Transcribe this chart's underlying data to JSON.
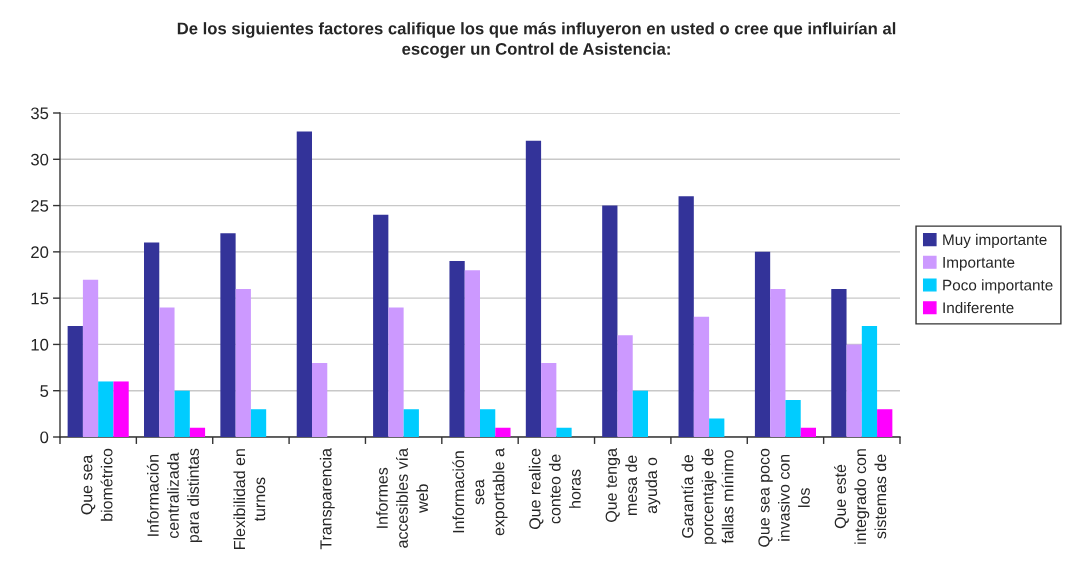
{
  "chart_data": {
    "type": "bar",
    "title": "De los siguientes factores califique los que más influyeron en usted o cree que influirían al\nescoger un Control de Asistencia:",
    "categories": [
      "Que sea\nbiométrico",
      "Información\ncentralizada\npara distintas",
      "Flexibilidad en\nturnos",
      "Transparencia",
      "Informes\naccesibles vía\nweb",
      "Información\nsea\nexportable a",
      "Que realice\nconteo de\nhoras",
      "Que tenga\nmesa de\nayuda o",
      "Garantía de\nporcentaje de\nfallas mínimo",
      "Que sea poco\ninvasivo con\nlos",
      "Que esté\nintegrado con\nsistemas de"
    ],
    "series": [
      {
        "name": "Muy importante",
        "color": "#333399",
        "values": [
          12,
          21,
          22,
          33,
          24,
          19,
          32,
          25,
          26,
          20,
          16
        ]
      },
      {
        "name": "Importante",
        "color": "#cc99ff",
        "values": [
          17,
          14,
          16,
          8,
          14,
          18,
          8,
          11,
          13,
          16,
          10
        ]
      },
      {
        "name": "Poco importante",
        "color": "#00ccff",
        "values": [
          6,
          5,
          3,
          null,
          3,
          3,
          1,
          5,
          2,
          4,
          12
        ]
      },
      {
        "name": "Indiferente",
        "color": "#ff00ff",
        "values": [
          6,
          1,
          null,
          null,
          null,
          1,
          null,
          null,
          null,
          1,
          3
        ]
      }
    ],
    "ylim": [
      0,
      35
    ],
    "yticks": [
      0,
      5,
      10,
      15,
      20,
      25,
      30,
      35
    ],
    "grid": "y",
    "legend": "right"
  }
}
